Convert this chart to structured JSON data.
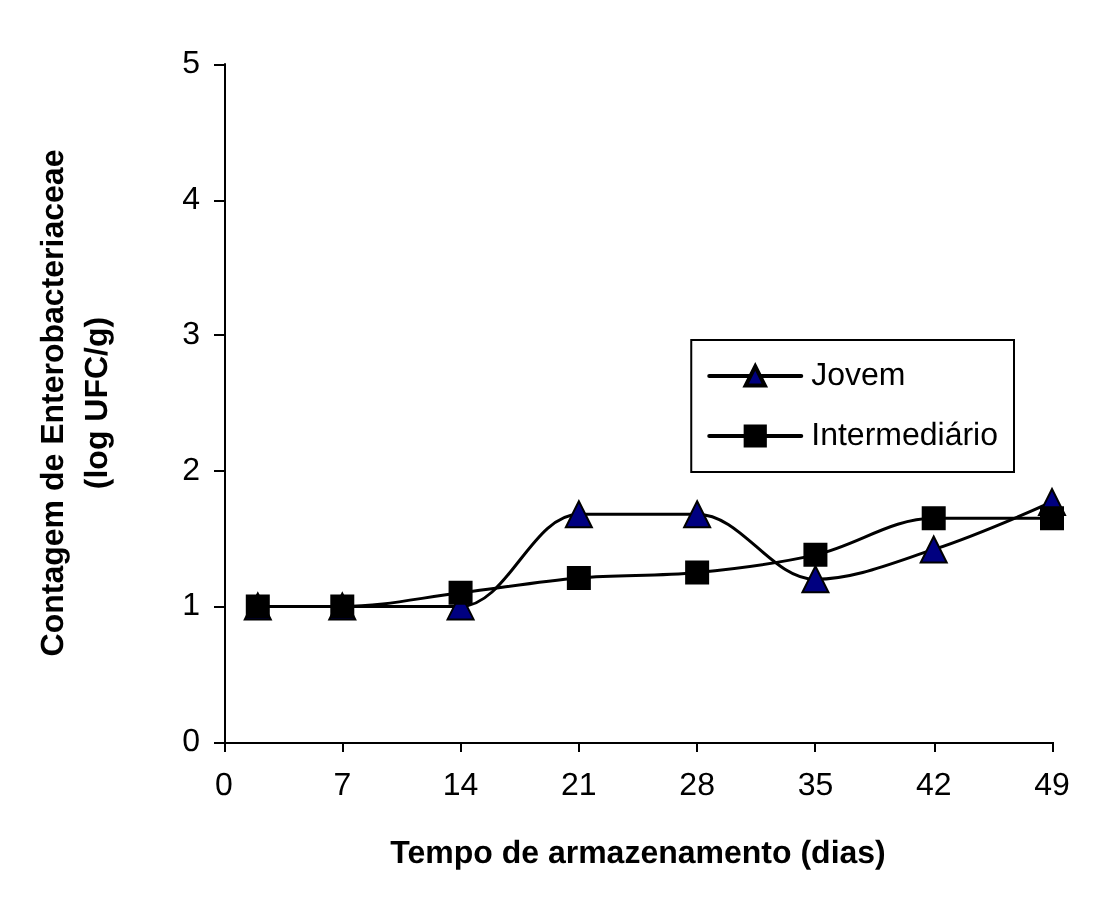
{
  "chart_data": {
    "type": "line",
    "xlabel": "Tempo de armazenamento (dias)",
    "ylabel": "Contagem de Enterobacteriaceae\n(log UFC/g)",
    "x": [
      2,
      7,
      14,
      21,
      28,
      35,
      42,
      49
    ],
    "series": [
      {
        "name": "Jovem",
        "color": "#000080",
        "marker": "triangle",
        "values": [
          1.0,
          1.0,
          1.0,
          1.68,
          1.68,
          1.2,
          1.42,
          1.77
        ]
      },
      {
        "name": "Intermediário",
        "color": "#000000",
        "marker": "square",
        "values": [
          1.0,
          1.0,
          1.1,
          1.21,
          1.25,
          1.38,
          1.65,
          1.65
        ]
      }
    ],
    "xlim": [
      0,
      49
    ],
    "xticks": [
      0,
      7,
      14,
      21,
      28,
      35,
      42,
      49
    ],
    "ylim": [
      0,
      5
    ],
    "yticks": [
      0,
      1,
      2,
      3,
      4,
      5
    ],
    "grid": false,
    "legend": "right",
    "line_style": "solid"
  }
}
